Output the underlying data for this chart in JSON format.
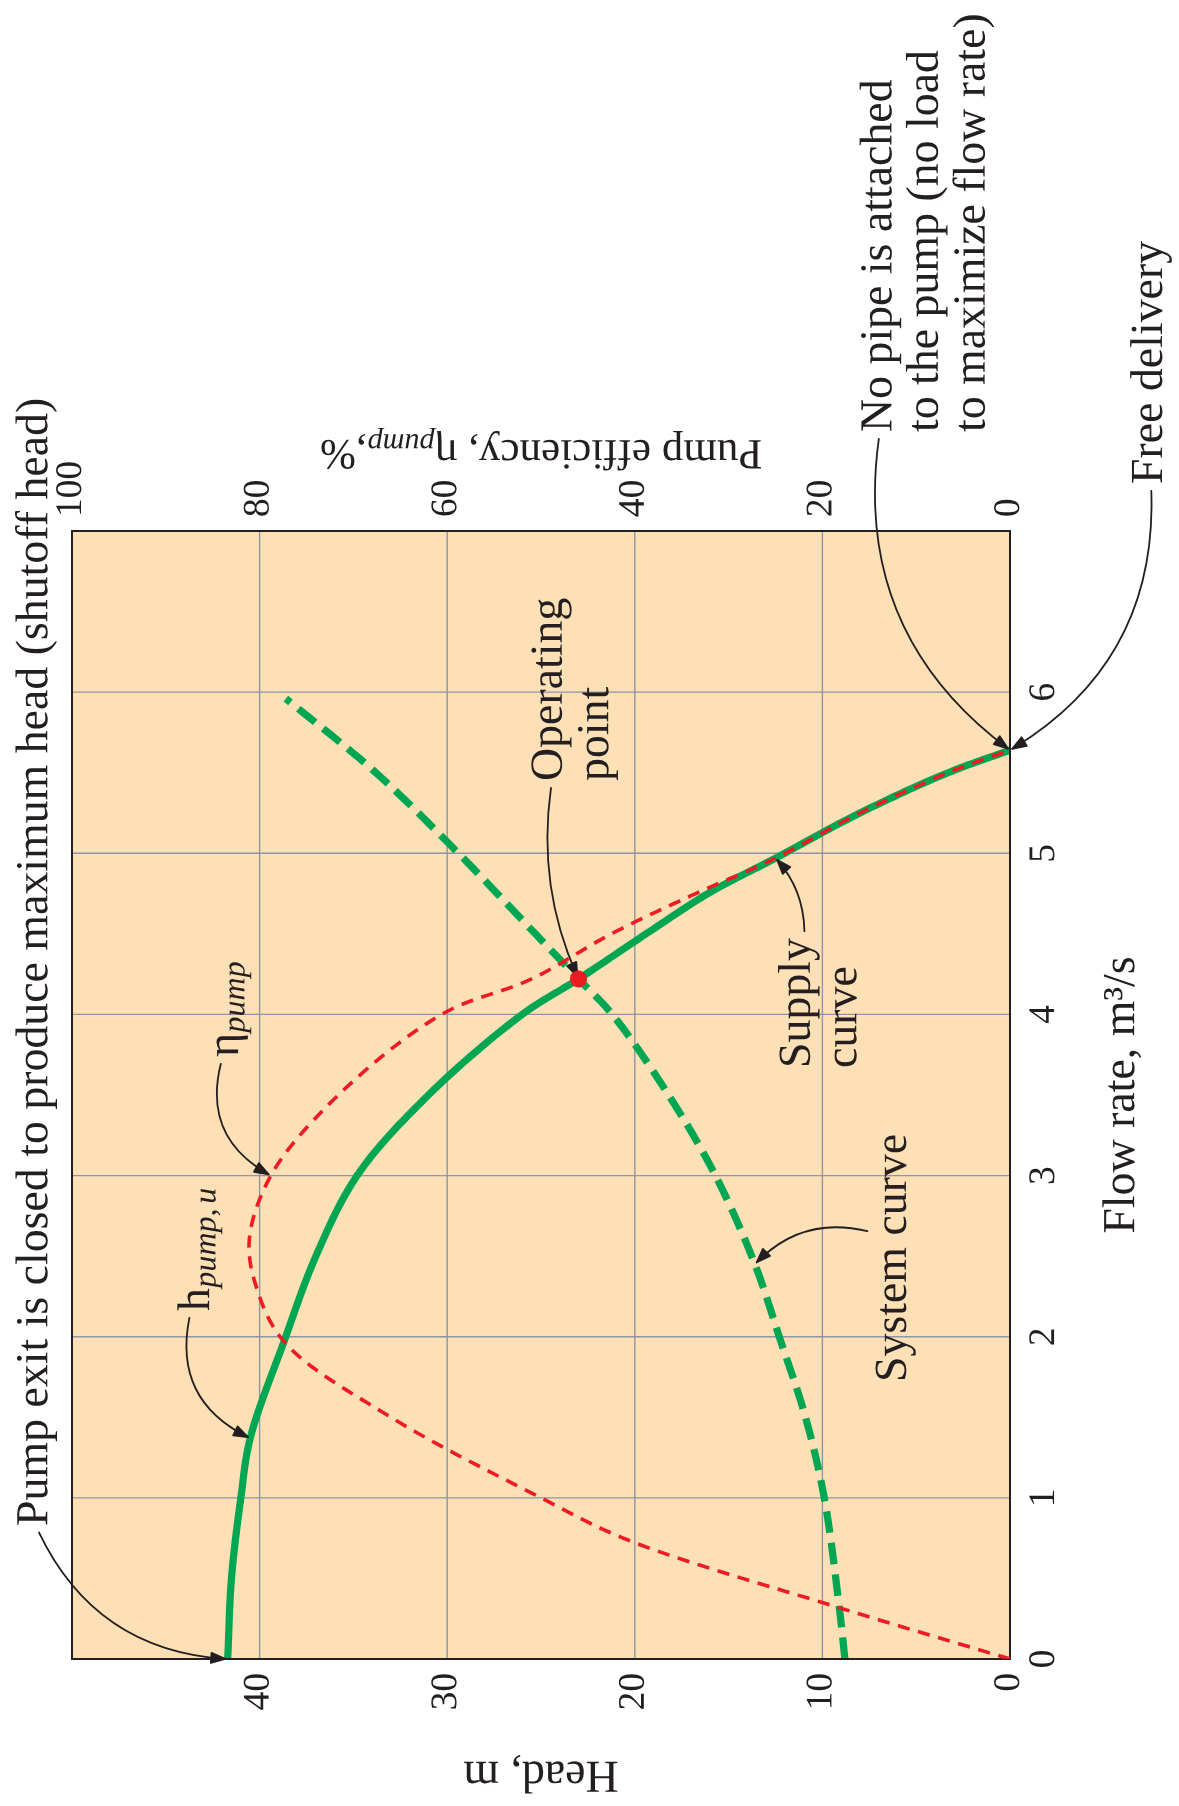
{
  "chart_data": {
    "type": "line",
    "xlabel": "Head, m",
    "ylabel": "Flow rate, m³/s",
    "x2label": "Pump efficiency, η$_{pump}$,%",
    "xlim": [
      50,
      0
    ],
    "xticks": [
      0,
      10,
      20,
      30,
      40
    ],
    "ylim": [
      0,
      7
    ],
    "yticks": [
      0,
      1,
      2,
      3,
      4,
      5,
      6
    ],
    "x2lim": [
      100,
      0
    ],
    "x2ticks": [
      0,
      20,
      40,
      60,
      80,
      100
    ],
    "grid": true,
    "series": [
      {
        "color": "#00a651",
        "line_style": "solid",
        "x": [
          41.7,
          41.5,
          41.0,
          40.5,
          38.7,
          37.0,
          34.8,
          31.0,
          26.0,
          23.0,
          19.4,
          16.1,
          12.5,
          8.0,
          3.3,
          0
        ],
        "values": [
          0,
          0.5,
          1,
          1.37,
          1.97,
          2.5,
          3,
          3.5,
          4,
          4.22,
          4.5,
          4.75,
          4.97,
          5.25,
          5.5,
          5.64
        ]
      },
      {
        "axis": "x2",
        "color": "#ed1c24",
        "line_style": "dashed",
        "x": [
          0,
          18.3,
          40.8,
          50,
          66,
          77.4,
          80.3,
          81.1,
          78.8,
          71.6,
          60.6,
          51,
          42.5,
          33.5,
          25,
          16,
          6.6,
          0
        ],
        "values": [
          0,
          0.32,
          0.74,
          1,
          1.5,
          1.97,
          2.3,
          2.6,
          3,
          3.5,
          4,
          4.22,
          4.5,
          4.75,
          4.97,
          5.25,
          5.5,
          5.64
        ]
      },
      {
        "color": "#00a651",
        "line_style": "dashed",
        "x": [
          8.8,
          9.1,
          9.9,
          10.9,
          12.3,
          13.6,
          15.7,
          18.2,
          21.2,
          23.0,
          25.3,
          29.4,
          33.8,
          38.6
        ],
        "values": [
          0,
          0.32,
          1,
          1.5,
          2,
          2.45,
          3,
          3.5,
          4,
          4.22,
          4.5,
          5,
          5.5,
          5.96
        ]
      },
      {
        "type": "scatter",
        "color": "#ed1c24",
        "marker": "circle",
        "x": [
          23.0
        ],
        "values": [
          4.22
        ]
      }
    ],
    "annotations": [
      {
        "text": "Pump exit is closed to produce maximum head (shutoff head)",
        "x": 41.7,
        "y": 0
      },
      {
        "text": "No pipe is attached\nto the pump (no load\nto maximize flow rate)",
        "x": 0,
        "y": 5.64
      },
      {
        "text": "Free delivery",
        "x": 0,
        "y": 5.64
      },
      {
        "text": "Operating\npoint",
        "x": 23.0,
        "y": 4.22
      },
      {
        "text": "h$_{pump,u}$",
        "x": 40.5,
        "y": 1.37
      },
      {
        "text": "η$_{pump}$",
        "x": 39.4,
        "y": 3.0
      },
      {
        "text": "Supply\ncurve",
        "x": 12.5,
        "y": 4.97
      },
      {
        "text": "System curve",
        "x": 13.6,
        "y": 2.45
      }
    ]
  }
}
